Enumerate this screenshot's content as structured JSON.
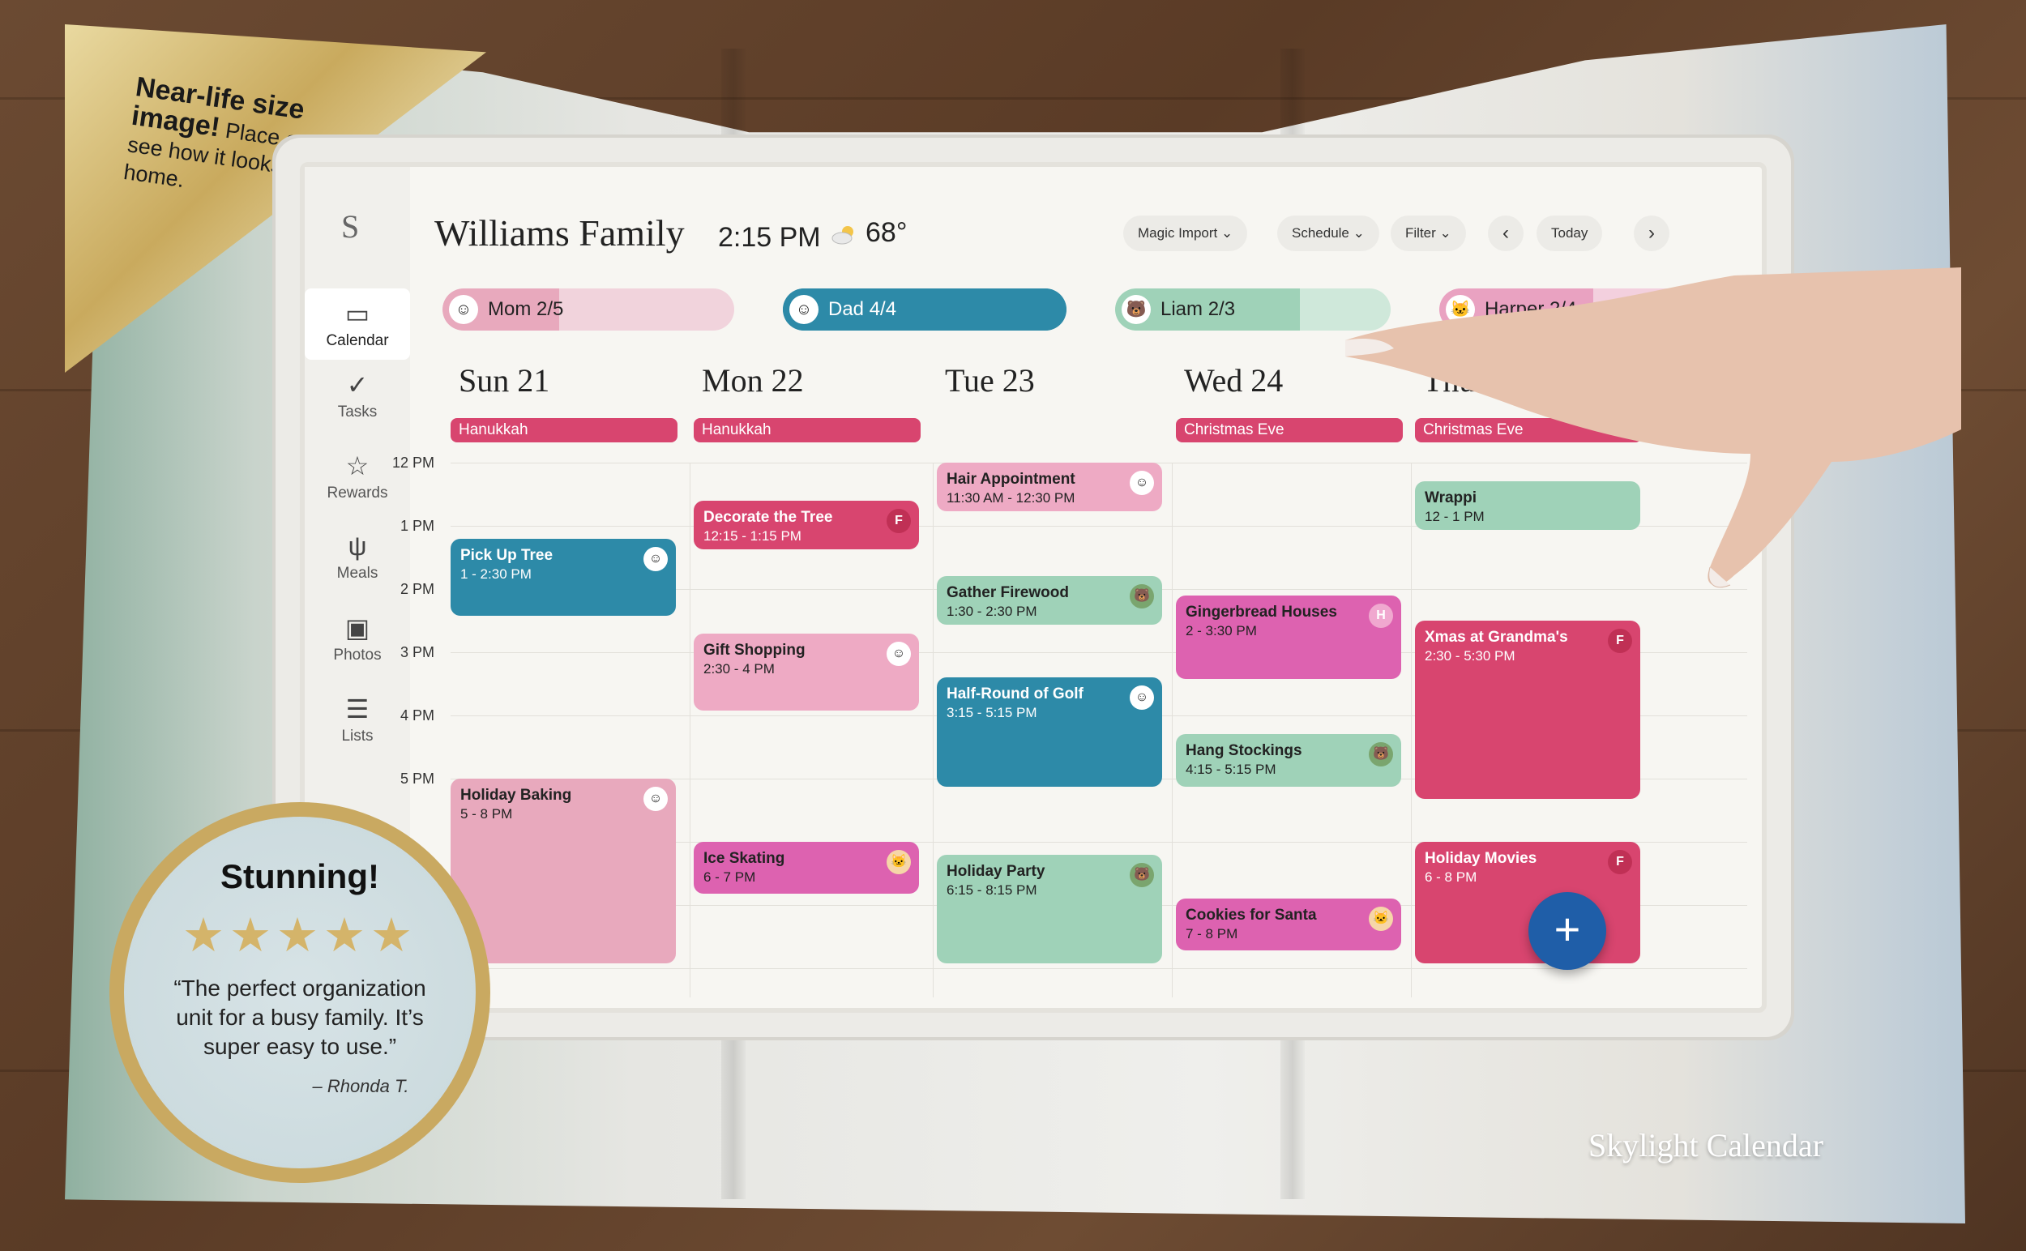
{
  "promo": {
    "corner_headline": "Near-life size image!",
    "corner_body": "Place on wall to see how it looks in your home.",
    "brand": "Skylight Calendar"
  },
  "review": {
    "title": "Stunning!",
    "stars": "★★★★★",
    "rating": 5,
    "quote": "“The perfect organization unit for a busy family. It’s super easy to use.”",
    "author": "– Rhonda T."
  },
  "sidebar": {
    "logo": "S",
    "items": [
      {
        "label": "Calendar",
        "icon": "calendar-icon",
        "glyph": "▭"
      },
      {
        "label": "Tasks",
        "icon": "check-icon",
        "glyph": "✓"
      },
      {
        "label": "Rewards",
        "icon": "star-outline-icon",
        "glyph": "☆"
      },
      {
        "label": "Meals",
        "icon": "utensils-icon",
        "glyph": "ψ"
      },
      {
        "label": "Photos",
        "icon": "photo-icon",
        "glyph": "▣"
      },
      {
        "label": "Lists",
        "icon": "list-icon",
        "glyph": "☰"
      }
    ]
  },
  "header": {
    "title": "Williams Family",
    "time": "2:15 PM",
    "temperature": "68°",
    "magic_import": "Magic Import",
    "schedule": "Schedule",
    "filter": "Filter",
    "today": "Today",
    "prev": "‹",
    "next": "›"
  },
  "members": [
    {
      "label": "Mom 2/5",
      "avatar": "☺",
      "color": "#e8a9bd",
      "track": "#f1d3dc",
      "progress": 0.4
    },
    {
      "label": "Dad 4/4",
      "avatar": "☺",
      "color": "#2d8aa8",
      "track": "#2d8aa8",
      "progress": 1.0
    },
    {
      "label": "Liam 2/3",
      "avatar": "🐻",
      "color": "#9fd2b8",
      "track": "#cfe8da",
      "progress": 0.67
    },
    {
      "label": "Harper 2/4",
      "avatar": "🐱",
      "color": "#e9a2c1",
      "track": "#f3d0de",
      "progress": 0.5
    }
  ],
  "days": [
    "Sun 21",
    "Mon 22",
    "Tue 23",
    "Wed 24",
    "Thu 25"
  ],
  "all_day": [
    {
      "day": 0,
      "label": "Hanukkah"
    },
    {
      "day": 1,
      "label": "Hanukkah"
    },
    {
      "day": 3,
      "label": "Christmas Eve"
    },
    {
      "day": 4,
      "label": "Christmas Eve"
    }
  ],
  "hours": [
    "12 PM",
    "1 PM",
    "2 PM",
    "3 PM",
    "4 PM",
    "5 PM"
  ],
  "events": [
    {
      "day": 0,
      "title": "Pick Up Tree",
      "time": "1 - 2:30 PM",
      "start": 1.2,
      "end": 2.5,
      "color": "#2d8aa8",
      "dark": true,
      "who": "☺",
      "who_bg": "#fff"
    },
    {
      "day": 0,
      "title": "Holiday Baking",
      "time": "5 - 8 PM",
      "start": 5.0,
      "end": 8.0,
      "color": "#e8a9bd",
      "dark": false,
      "who": "☺",
      "who_bg": "#fff"
    },
    {
      "day": 1,
      "title": "Decorate the Tree",
      "time": "12:15 - 1:15 PM",
      "start": 0.6,
      "end": 1.4,
      "color": "#d8456f",
      "dark": true,
      "who": "F",
      "who_bg": "#c03055"
    },
    {
      "day": 1,
      "title": "Gift Shopping",
      "time": "2:30 - 4 PM",
      "start": 2.7,
      "end": 4.0,
      "color": "#eeaac4",
      "dark": false,
      "who": "☺",
      "who_bg": "#fff"
    },
    {
      "day": 1,
      "title": "Ice Skating",
      "time": "6 - 7 PM",
      "start": 6.0,
      "end": 6.9,
      "color": "#dd62b0",
      "dark": false,
      "who": "🐱",
      "who_bg": "#f6d6a8"
    },
    {
      "day": 2,
      "title": "Hair Appointment",
      "time": "11:30 AM - 12:30 PM",
      "start": 0.0,
      "end": 0.8,
      "color": "#eeaac4",
      "dark": false,
      "who": "☺",
      "who_bg": "#fff"
    },
    {
      "day": 2,
      "title": "Gather Firewood",
      "time": "1:30 - 2:30 PM",
      "start": 1.8,
      "end": 2.6,
      "color": "#9fd2b8",
      "dark": false,
      "who": "🐻",
      "who_bg": "#7aa56e"
    },
    {
      "day": 2,
      "title": "Half-Round of Golf",
      "time": "3:15 - 5:15 PM",
      "start": 3.4,
      "end": 5.2,
      "color": "#2d8aa8",
      "dark": true,
      "who": "☺",
      "who_bg": "#fff"
    },
    {
      "day": 2,
      "title": "Holiday Party",
      "time": "6:15 - 8:15 PM",
      "start": 6.2,
      "end": 8.0,
      "color": "#9fd2b8",
      "dark": false,
      "who": "🐻",
      "who_bg": "#7aa56e"
    },
    {
      "day": 3,
      "title": "Gingerbread Houses",
      "time": "2 - 3:30 PM",
      "start": 2.1,
      "end": 3.5,
      "color": "#dd62b0",
      "dark": false,
      "who": "H",
      "who_bg": "#f0a8cf"
    },
    {
      "day": 3,
      "title": "Hang Stockings",
      "time": "4:15 - 5:15 PM",
      "start": 4.3,
      "end": 5.2,
      "color": "#9fd2b8",
      "dark": false,
      "who": "🐻",
      "who_bg": "#7aa56e"
    },
    {
      "day": 3,
      "title": "Cookies for Santa",
      "time": "7 - 8 PM",
      "start": 6.9,
      "end": 7.8,
      "color": "#dd62b0",
      "dark": false,
      "who": "🐱",
      "who_bg": "#f6d6a8"
    },
    {
      "day": 4,
      "title": "Wrappi",
      "time": "12 - 1 PM",
      "start": 0.3,
      "end": 1.1,
      "color": "#9fd2b8",
      "dark": false,
      "who": "",
      "who_bg": "transparent"
    },
    {
      "day": 4,
      "title": "Xmas at Grandma's",
      "time": "2:30 - 5:30 PM",
      "start": 2.5,
      "end": 5.4,
      "color": "#d8456f",
      "dark": true,
      "who": "F",
      "who_bg": "#c03055"
    },
    {
      "day": 4,
      "title": "Holiday Movies",
      "time": "6 - 8 PM",
      "start": 6.0,
      "end": 8.0,
      "color": "#d8456f",
      "dark": true,
      "who": "F",
      "who_bg": "#c03055"
    }
  ],
  "fab": "+"
}
